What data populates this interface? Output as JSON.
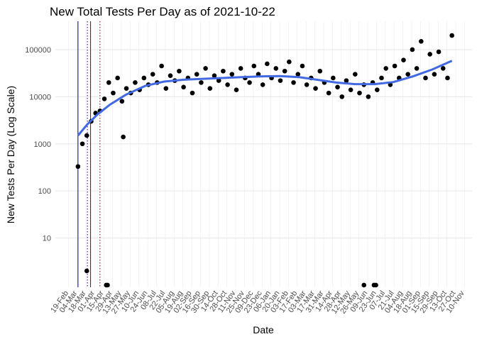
{
  "chart_data": {
    "type": "scatter",
    "title": "New Total Tests Per Day as of 2021-10-22",
    "x_label": "Date",
    "y_label": "New Tests Per Day (Log Scale)",
    "log_scale": true,
    "grid": true,
    "ylim": [
      0.9,
      400000
    ],
    "yticks": [
      10,
      100,
      1000,
      10000,
      100000
    ],
    "xlim": [
      "2020-01-29",
      "2021-11-22"
    ],
    "xticks": [
      {
        "value": "2020-02-19",
        "label": "19-Feb"
      },
      {
        "value": "2020-03-04",
        "label": "04-Mar"
      },
      {
        "value": "2020-03-18",
        "label": "18-Mar"
      },
      {
        "value": "2020-04-01",
        "label": "01-Apr"
      },
      {
        "value": "2020-04-15",
        "label": "15-Apr"
      },
      {
        "value": "2020-04-29",
        "label": "29-Apr"
      },
      {
        "value": "2020-05-13",
        "label": "13-May"
      },
      {
        "value": "2020-05-27",
        "label": "27-May"
      },
      {
        "value": "2020-06-10",
        "label": "10-Jun"
      },
      {
        "value": "2020-06-24",
        "label": "24-Jun"
      },
      {
        "value": "2020-07-08",
        "label": "08-Jul"
      },
      {
        "value": "2020-07-22",
        "label": "22-Jul"
      },
      {
        "value": "2020-08-05",
        "label": "05-Aug"
      },
      {
        "value": "2020-08-19",
        "label": "19-Aug"
      },
      {
        "value": "2020-09-02",
        "label": "02-Sep"
      },
      {
        "value": "2020-09-16",
        "label": "16-Sep"
      },
      {
        "value": "2020-09-30",
        "label": "30-Sep"
      },
      {
        "value": "2020-10-14",
        "label": "14-Oct"
      },
      {
        "value": "2020-10-28",
        "label": "28-Oct"
      },
      {
        "value": "2020-11-11",
        "label": "11-Nov"
      },
      {
        "value": "2020-11-25",
        "label": "25-Nov"
      },
      {
        "value": "2020-12-09",
        "label": "09-Dec"
      },
      {
        "value": "2020-12-23",
        "label": "23-Dec"
      },
      {
        "value": "2021-01-06",
        "label": "06-Jan"
      },
      {
        "value": "2021-01-20",
        "label": "20-Jan"
      },
      {
        "value": "2021-02-03",
        "label": "03-Feb"
      },
      {
        "value": "2021-02-17",
        "label": "17-Feb"
      },
      {
        "value": "2021-03-03",
        "label": "03-Mar"
      },
      {
        "value": "2021-03-17",
        "label": "17-Mar"
      },
      {
        "value": "2021-03-31",
        "label": "31-Mar"
      },
      {
        "value": "2021-04-14",
        "label": "14-Apr"
      },
      {
        "value": "2021-04-28",
        "label": "28-Apr"
      },
      {
        "value": "2021-05-12",
        "label": "12-May"
      },
      {
        "value": "2021-05-26",
        "label": "26-May"
      },
      {
        "value": "2021-06-09",
        "label": "09-Jun"
      },
      {
        "value": "2021-06-23",
        "label": "23-Jun"
      },
      {
        "value": "2021-07-07",
        "label": "07-Jul"
      },
      {
        "value": "2021-07-21",
        "label": "21-Jul"
      },
      {
        "value": "2021-08-04",
        "label": "04-Aug"
      },
      {
        "value": "2021-08-18",
        "label": "18-Aug"
      },
      {
        "value": "2021-09-01",
        "label": "01-Sep"
      },
      {
        "value": "2021-09-15",
        "label": "15-Sep"
      },
      {
        "value": "2021-09-29",
        "label": "29-Sep"
      },
      {
        "value": "2021-10-13",
        "label": "13-Oct"
      },
      {
        "value": "2021-10-27",
        "label": "27-Oct"
      },
      {
        "value": "2021-11-10",
        "label": "10-Nov"
      }
    ],
    "vlines": [
      {
        "x": "2020-03-05",
        "color": "#00008b",
        "style": "solid"
      },
      {
        "x": "2020-03-20",
        "color": "#00008b",
        "style": "dotted"
      },
      {
        "x": "2020-03-25",
        "color": "#8b0000",
        "style": "solid"
      },
      {
        "x": "2020-04-09",
        "color": "#8b0000",
        "style": "dotted"
      }
    ],
    "series": [
      {
        "type": "scatter",
        "color": "#000000",
        "x": [
          "2020-03-05",
          "2020-03-12",
          "2020-03-19",
          "2020-03-26",
          "2020-04-02",
          "2020-04-09",
          "2020-04-16",
          "2020-04-23",
          "2020-04-30",
          "2020-05-07",
          "2020-05-14",
          "2020-05-21",
          "2020-05-28",
          "2020-06-04",
          "2020-06-11",
          "2020-06-18",
          "2020-06-25",
          "2020-07-02",
          "2020-07-09",
          "2020-07-16",
          "2020-07-23",
          "2020-07-30",
          "2020-08-06",
          "2020-08-13",
          "2020-08-20",
          "2020-08-27",
          "2020-09-03",
          "2020-09-10",
          "2020-09-17",
          "2020-09-24",
          "2020-10-01",
          "2020-10-08",
          "2020-10-15",
          "2020-10-22",
          "2020-10-29",
          "2020-11-05",
          "2020-11-12",
          "2020-11-19",
          "2020-11-26",
          "2020-12-03",
          "2020-12-10",
          "2020-12-17",
          "2020-12-24",
          "2020-12-31",
          "2021-01-07",
          "2021-01-14",
          "2021-01-21",
          "2021-01-28",
          "2021-02-04",
          "2021-02-11",
          "2021-02-18",
          "2021-02-25",
          "2021-03-04",
          "2021-03-11",
          "2021-03-18",
          "2021-03-25",
          "2021-04-01",
          "2021-04-08",
          "2021-04-15",
          "2021-04-22",
          "2021-04-29",
          "2021-05-06",
          "2021-05-13",
          "2021-05-20",
          "2021-05-27",
          "2021-06-03",
          "2021-06-10",
          "2021-06-17",
          "2021-06-24",
          "2021-07-01",
          "2021-07-08",
          "2021-07-15",
          "2021-07-22",
          "2021-07-29",
          "2021-08-05",
          "2021-08-12",
          "2021-08-19",
          "2021-08-26",
          "2021-09-02",
          "2021-09-09",
          "2021-09-16",
          "2021-09-23",
          "2021-09-30",
          "2021-10-07",
          "2021-10-14",
          "2021-10-21",
          "2020-03-19",
          "2020-04-19",
          "2020-04-21",
          "2021-06-03",
          "2021-06-19",
          "2021-06-22",
          "2020-05-16"
        ],
        "values": [
          330,
          1000,
          1500,
          3000,
          4500,
          5000,
          9000,
          20000,
          12000,
          25000,
          8000,
          15000,
          12000,
          20000,
          14000,
          25000,
          18000,
          30000,
          20000,
          45000,
          15000,
          28000,
          22000,
          35000,
          16000,
          25000,
          12000,
          30000,
          20000,
          40000,
          15000,
          28000,
          22000,
          35000,
          18000,
          30000,
          14000,
          40000,
          25000,
          20000,
          45000,
          30000,
          18000,
          50000,
          25000,
          40000,
          22000,
          35000,
          55000,
          20000,
          30000,
          45000,
          18000,
          25000,
          15000,
          35000,
          20000,
          12000,
          25000,
          16000,
          10000,
          22000,
          14000,
          30000,
          12000,
          18000,
          10000,
          20000,
          14000,
          25000,
          40000,
          18000,
          45000,
          25000,
          60000,
          30000,
          100000,
          40000,
          150000,
          25000,
          80000,
          30000,
          90000,
          40000,
          25000,
          200000,
          2,
          1,
          1,
          1,
          1,
          1,
          1400
        ]
      },
      {
        "type": "line",
        "color": "#4169e1",
        "x": [
          "2020-03-05",
          "2020-03-20",
          "2020-04-05",
          "2020-04-25",
          "2020-05-20",
          "2020-06-20",
          "2020-07-20",
          "2020-08-20",
          "2020-09-20",
          "2020-10-20",
          "2020-11-20",
          "2020-12-20",
          "2021-01-20",
          "2021-02-20",
          "2021-03-20",
          "2021-04-20",
          "2021-05-20",
          "2021-06-20",
          "2021-07-20",
          "2021-08-20",
          "2021-09-20",
          "2021-10-21"
        ],
        "values": [
          1500,
          2600,
          4200,
          6800,
          11000,
          17000,
          21000,
          23000,
          24000,
          25000,
          26000,
          27000,
          27500,
          26000,
          23000,
          20000,
          18500,
          18500,
          20500,
          27000,
          38000,
          58000
        ]
      }
    ]
  }
}
